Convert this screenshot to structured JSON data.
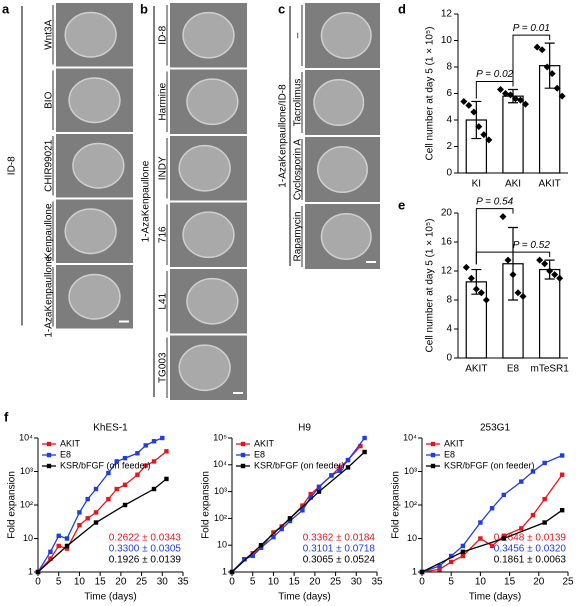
{
  "image_panels": [
    {
      "label": "a",
      "group": "ID-8",
      "rows": [
        "Wnt3A",
        "BIO",
        "CHIR99021",
        "Kenpaullone",
        "1-AzaKenpaullone"
      ]
    },
    {
      "label": "b",
      "group": "1-AzaKenpaullone",
      "rows": [
        "ID-8",
        "Harmine",
        "INDY",
        "716",
        "L41",
        "TG003"
      ]
    },
    {
      "label": "c",
      "group": "1-AzaKenpaullone/ID-8",
      "rows": [
        "–",
        "Tacrolimus",
        "Cyclosporin A",
        "Rapamycin"
      ]
    }
  ],
  "line_panel_label": "f",
  "chart_data": [
    {
      "type": "bar",
      "panel": "d",
      "ylabel": "Cell number at day 5 (1 × 10⁵)",
      "categories": [
        "KI",
        "AKI",
        "AKIT"
      ],
      "values": [
        4.0,
        5.8,
        8.1
      ],
      "errors": [
        1.4,
        0.5,
        1.7
      ],
      "points": [
        [
          5.4,
          5.1,
          4.6,
          3.5,
          2.9,
          2.5
        ],
        [
          6.3,
          6.0,
          5.9,
          5.6,
          5.5,
          5.2
        ],
        [
          9.5,
          9.3,
          8.0,
          7.5,
          6.4,
          5.8
        ]
      ],
      "ylim": [
        0,
        12
      ],
      "yticks": [
        0,
        2,
        4,
        6,
        8,
        10,
        12
      ],
      "annotations": [
        "P = 0.02",
        "P = 0.01"
      ]
    },
    {
      "type": "bar",
      "panel": "e",
      "ylabel": "Cell number at day 5 (1 × 10⁵)",
      "categories": [
        "AKIT",
        "E8",
        "mTeSR1"
      ],
      "values": [
        10.5,
        13.0,
        12.2
      ],
      "errors": [
        1.7,
        5.0,
        1.3
      ],
      "points": [
        [
          12.5,
          11,
          9.5,
          9,
          8
        ],
        [
          19.5,
          13.5,
          11.5,
          9,
          8.5
        ],
        [
          13.5,
          13,
          12,
          11.5,
          11
        ]
      ],
      "ylim": [
        0,
        20
      ],
      "yticks": [
        0,
        4,
        8,
        12,
        16,
        20
      ],
      "annotations": [
        "P = 0.54",
        "P = 0.52"
      ]
    },
    {
      "type": "line",
      "title": "KhES-1",
      "xlabel": "Time (days)",
      "ylabel": "Fold expansion",
      "log_y": true,
      "legend": "upper left",
      "xlim": [
        0,
        35
      ],
      "xticks": [
        0,
        5,
        10,
        15,
        20,
        25,
        30,
        35
      ],
      "ylim": [
        1,
        10000
      ],
      "yticks": [
        1,
        10,
        {
          "value": 100,
          "label": "10²"
        },
        {
          "value": 1000,
          "label": "10³"
        },
        {
          "value": 10000,
          "label": "10⁴"
        }
      ],
      "series": [
        {
          "name": "AKIT",
          "color": "#e8141c",
          "rate": "0.2622 ± 0.0343",
          "x": [
            0,
            3,
            5,
            7,
            10,
            12,
            14,
            17,
            19,
            21,
            24,
            26,
            28,
            31
          ],
          "values": [
            1,
            2.5,
            6,
            5,
            25,
            40,
            60,
            150,
            300,
            400,
            800,
            1500,
            2000,
            4000
          ]
        },
        {
          "name": "E8",
          "color": "#1f3ce6",
          "rate": "0.3300 ± 0.0305",
          "x": [
            0,
            3,
            5,
            7,
            10,
            12,
            14,
            17,
            19,
            21,
            24,
            26,
            28,
            30
          ],
          "values": [
            1,
            4,
            12,
            10,
            60,
            150,
            300,
            900,
            2000,
            2500,
            3500,
            6000,
            8000,
            10000
          ]
        },
        {
          "name": "KSR/bFGF (on feeder)",
          "color": "#000000",
          "rate": "0.1926 ± 0.0139",
          "x": [
            0,
            7,
            14,
            21,
            28,
            31
          ],
          "values": [
            1,
            6,
            30,
            100,
            300,
            600
          ]
        }
      ]
    },
    {
      "type": "line",
      "title": "H9",
      "xlabel": "Time (days)",
      "ylabel": "Fold expansion",
      "log_y": true,
      "legend": "upper left",
      "xlim": [
        0,
        35
      ],
      "xticks": [
        0,
        5,
        10,
        15,
        20,
        25,
        30,
        35
      ],
      "ylim": [
        1,
        100000
      ],
      "yticks": [
        1,
        10,
        {
          "value": 100,
          "label": "10²"
        },
        {
          "value": 1000,
          "label": "10³"
        },
        {
          "value": 10000,
          "label": "10⁴"
        },
        {
          "value": 100000,
          "label": "10⁵"
        }
      ],
      "series": [
        {
          "name": "AKIT",
          "color": "#e8141c",
          "rate": "0.3362 ± 0.0184",
          "x": [
            0,
            3,
            5,
            7,
            10,
            12,
            14,
            17,
            19,
            21,
            24,
            26,
            28,
            31
          ],
          "values": [
            1,
            3,
            5,
            8,
            30,
            50,
            100,
            300,
            800,
            1500,
            4000,
            8000,
            15000,
            50000
          ]
        },
        {
          "name": "E8",
          "color": "#1f3ce6",
          "rate": "0.3101 ± 0.0718",
          "x": [
            0,
            3,
            5,
            7,
            10,
            12,
            14,
            17,
            19,
            21,
            24,
            26,
            28,
            32
          ],
          "values": [
            1,
            3,
            4,
            8,
            20,
            40,
            80,
            200,
            600,
            1500,
            4000,
            6000,
            15000,
            100000
          ]
        },
        {
          "name": "KSR/bFGF (on feeder)",
          "color": "#000000",
          "rate": "0.3065 ± 0.0524",
          "x": [
            0,
            7,
            14,
            21,
            28,
            32
          ],
          "values": [
            1,
            10,
            100,
            1000,
            8000,
            30000
          ]
        }
      ]
    },
    {
      "type": "line",
      "title": "253G1",
      "xlabel": "Time (days)",
      "ylabel": "Fold expansion",
      "log_y": true,
      "legend": "upper left",
      "xlim": [
        0,
        25
      ],
      "xticks": [
        0,
        5,
        10,
        15,
        20,
        25
      ],
      "ylim": [
        1,
        10000
      ],
      "yticks": [
        1,
        10,
        {
          "value": 100,
          "label": "10²"
        },
        {
          "value": 1000,
          "label": "10³"
        },
        {
          "value": 10000,
          "label": "10⁴"
        }
      ],
      "series": [
        {
          "name": "AKIT",
          "color": "#e8141c",
          "rate": "0.2648 ± 0.0139",
          "x": [
            0,
            3,
            5,
            7,
            10,
            12,
            14,
            17,
            19,
            21,
            24
          ],
          "values": [
            1,
            1.2,
            2,
            3,
            10,
            6,
            12,
            20,
            50,
            150,
            800
          ]
        },
        {
          "name": "E8",
          "color": "#1f3ce6",
          "rate": "0.3456 ± 0.0320",
          "x": [
            0,
            3,
            5,
            7,
            10,
            12,
            14,
            17,
            19,
            21,
            24
          ],
          "values": [
            1,
            1.5,
            3,
            6,
            30,
            80,
            200,
            500,
            1000,
            1800,
            3000
          ]
        },
        {
          "name": "KSR/bFGF (on feeder)",
          "color": "#000000",
          "rate": "0.1861 ± 0.0063",
          "x": [
            0,
            7,
            14,
            21,
            24
          ],
          "values": [
            1,
            4,
            10,
            30,
            70
          ]
        }
      ]
    }
  ]
}
